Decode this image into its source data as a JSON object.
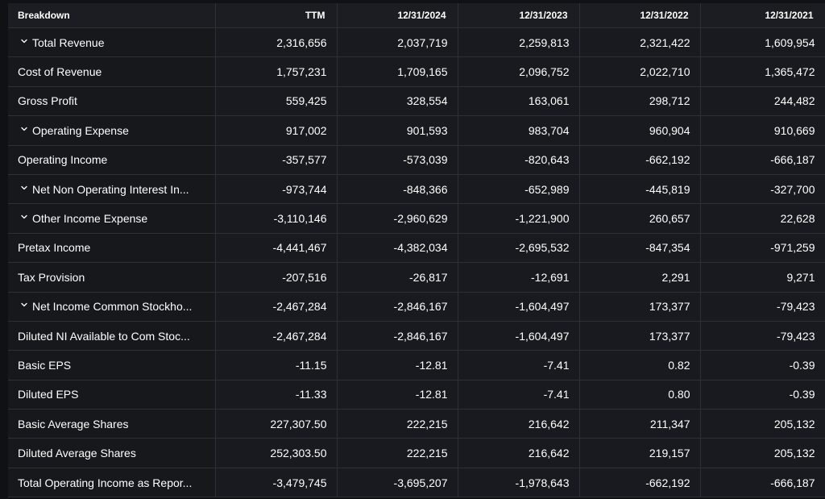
{
  "header": {
    "breakdown": "Breakdown",
    "columns": [
      "TTM",
      "12/31/2024",
      "12/31/2023",
      "12/31/2022",
      "12/31/2021"
    ]
  },
  "rows": [
    {
      "label": "Total Revenue",
      "expandable": true,
      "values": [
        "2,316,656",
        "2,037,719",
        "2,259,813",
        "2,321,422",
        "1,609,954"
      ]
    },
    {
      "label": "Cost of Revenue",
      "expandable": false,
      "values": [
        "1,757,231",
        "1,709,165",
        "2,096,752",
        "2,022,710",
        "1,365,472"
      ]
    },
    {
      "label": "Gross Profit",
      "expandable": false,
      "values": [
        "559,425",
        "328,554",
        "163,061",
        "298,712",
        "244,482"
      ]
    },
    {
      "label": "Operating Expense",
      "expandable": true,
      "values": [
        "917,002",
        "901,593",
        "983,704",
        "960,904",
        "910,669"
      ]
    },
    {
      "label": "Operating Income",
      "expandable": false,
      "values": [
        "-357,577",
        "-573,039",
        "-820,643",
        "-662,192",
        "-666,187"
      ]
    },
    {
      "label": "Net Non Operating Interest In...",
      "expandable": true,
      "values": [
        "-973,744",
        "-848,366",
        "-652,989",
        "-445,819",
        "-327,700"
      ]
    },
    {
      "label": "Other Income Expense",
      "expandable": true,
      "values": [
        "-3,110,146",
        "-2,960,629",
        "-1,221,900",
        "260,657",
        "22,628"
      ]
    },
    {
      "label": "Pretax Income",
      "expandable": false,
      "values": [
        "-4,441,467",
        "-4,382,034",
        "-2,695,532",
        "-847,354",
        "-971,259"
      ]
    },
    {
      "label": "Tax Provision",
      "expandable": false,
      "values": [
        "-207,516",
        "-26,817",
        "-12,691",
        "2,291",
        "9,271"
      ]
    },
    {
      "label": "Net Income Common Stockho...",
      "expandable": true,
      "values": [
        "-2,467,284",
        "-2,846,167",
        "-1,604,497",
        "173,377",
        "-79,423"
      ]
    },
    {
      "label": "Diluted NI Available to Com Stoc...",
      "expandable": false,
      "values": [
        "-2,467,284",
        "-2,846,167",
        "-1,604,497",
        "173,377",
        "-79,423"
      ]
    },
    {
      "label": "Basic EPS",
      "expandable": false,
      "values": [
        "-11.15",
        "-12.81",
        "-7.41",
        "0.82",
        "-0.39"
      ]
    },
    {
      "label": "Diluted EPS",
      "expandable": false,
      "values": [
        "-11.33",
        "-12.81",
        "-7.41",
        "0.80",
        "-0.39"
      ]
    },
    {
      "label": "Basic Average Shares",
      "expandable": false,
      "values": [
        "227,307.50",
        "222,215",
        "216,642",
        "211,347",
        "205,132"
      ]
    },
    {
      "label": "Diluted Average Shares",
      "expandable": false,
      "values": [
        "252,303.50",
        "222,215",
        "216,642",
        "219,157",
        "205,132"
      ]
    },
    {
      "label": "Total Operating Income as Repor...",
      "expandable": false,
      "values": [
        "-3,479,745",
        "-3,695,207",
        "-1,978,643",
        "-662,192",
        "-666,187"
      ]
    }
  ],
  "icons": {
    "expand": "chevron-down-icon"
  },
  "colors": {
    "background": "#101115",
    "header": "#1c1d22",
    "cell": "#191a1f",
    "border": "#2e3038",
    "text": "#ffffff"
  }
}
